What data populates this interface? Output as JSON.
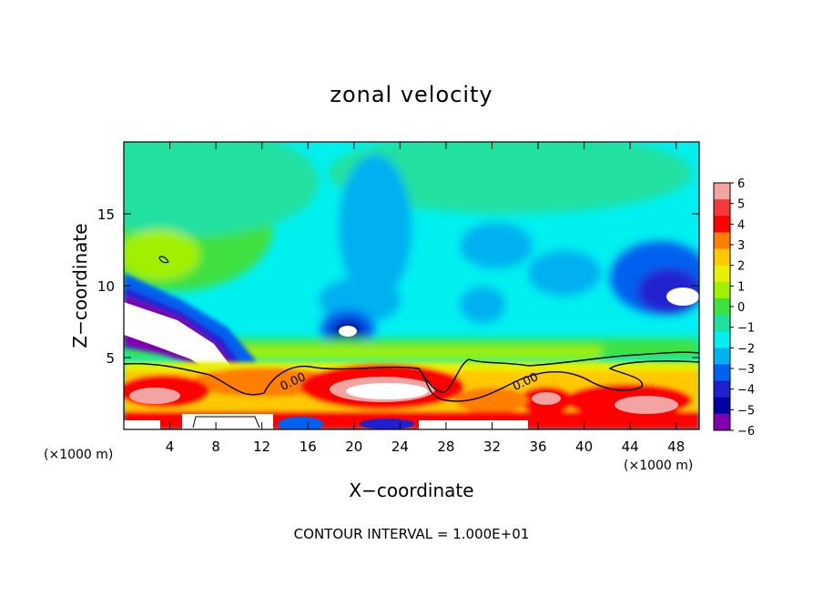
{
  "chart_data": {
    "type": "heatmap",
    "title": "zonal velocity",
    "xlabel": "X−coordinate",
    "ylabel": "Z−coordinate",
    "x_unit_left": "(×1000 m)",
    "x_unit_right": "(×1000 m)",
    "xlim": [
      0,
      50
    ],
    "ylim": [
      0,
      20
    ],
    "x_ticks": [
      4,
      8,
      12,
      16,
      20,
      24,
      28,
      32,
      36,
      40,
      44,
      48
    ],
    "y_ticks": [
      5,
      10,
      15
    ],
    "colorbar": {
      "levels": [
        6,
        5,
        4,
        3,
        2,
        1,
        0,
        -1,
        -2,
        -3,
        -4,
        -5,
        -6
      ],
      "labels": [
        "6",
        "5",
        "4",
        "3",
        "2",
        "1",
        "0",
        "−1",
        "−2",
        "−3",
        "−4",
        "−5",
        "−6"
      ],
      "colors": [
        "#f4a3a3",
        "#f23a3a",
        "#ff0000",
        "#ff8000",
        "#ffc800",
        "#e6f000",
        "#a0f000",
        "#40e040",
        "#20e0a0",
        "#00f0f0",
        "#00b0f0",
        "#0060f0",
        "#2020d0",
        "#0000a0",
        "#8000b0"
      ]
    },
    "contour_labels": [
      {
        "x": 13.8,
        "y": 2.7,
        "text": "0.00"
      },
      {
        "x": 34.0,
        "y": 2.7,
        "text": "0.00"
      }
    ],
    "footer": "CONTOUR INTERVAL = 1.000E+01"
  }
}
